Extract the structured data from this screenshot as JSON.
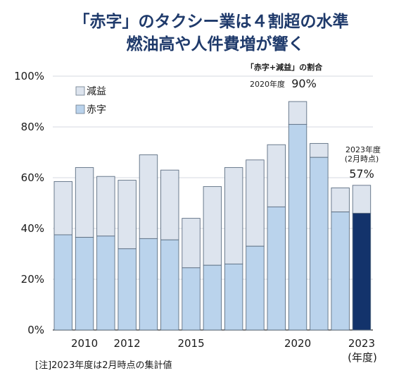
{
  "title_line1": "「赤字」のタクシー業は４割超の水準",
  "title_line2": "燃油高や人件費増が響く",
  "legend": {
    "deficit_plus_decline": "減益",
    "deficit": "赤字"
  },
  "annotation_2020": {
    "heading": "「赤字+減益」の割合",
    "year_label": "2020年度",
    "value_label": "90%"
  },
  "annotation_2023": {
    "year_label": "2023年度",
    "note_label": "(2月時点)",
    "value_label": "57%"
  },
  "x_unit_label": "(年度)",
  "footnote": "[注]2023年度は2月時点の集計値",
  "colors": {
    "deficit": "#bad3ec",
    "decline": "#dde4ee",
    "highlight": "#13336b",
    "title": "#1f3a6b"
  },
  "chart_data": {
    "type": "bar",
    "stacked": true,
    "x": [
      2009,
      2010,
      2011,
      2012,
      2013,
      2014,
      2015,
      2016,
      2017,
      2018,
      2019,
      2020,
      2021,
      2022,
      2023
    ],
    "x_tick_labels": [
      "2010",
      "2012",
      "2015",
      "2020",
      "2023"
    ],
    "x_tick_years": [
      2010,
      2012,
      2015,
      2020,
      2023
    ],
    "ylim": [
      0,
      100
    ],
    "y_ticks": [
      0,
      20,
      40,
      60,
      80,
      100
    ],
    "y_tick_labels": [
      "0%",
      "20%",
      "40%",
      "60%",
      "80%",
      "100%"
    ],
    "series": [
      {
        "name": "赤字",
        "values": [
          37.5,
          36.5,
          37,
          32,
          36,
          35.5,
          24.5,
          25.5,
          26,
          33,
          48.5,
          81,
          68,
          46.5,
          46
        ]
      },
      {
        "name": "減益",
        "values": [
          21,
          27.5,
          23.5,
          27,
          33,
          27.5,
          19.5,
          31,
          38,
          34,
          24.5,
          9,
          5.5,
          9.5,
          11
        ]
      }
    ],
    "highlight_index": 14
  }
}
